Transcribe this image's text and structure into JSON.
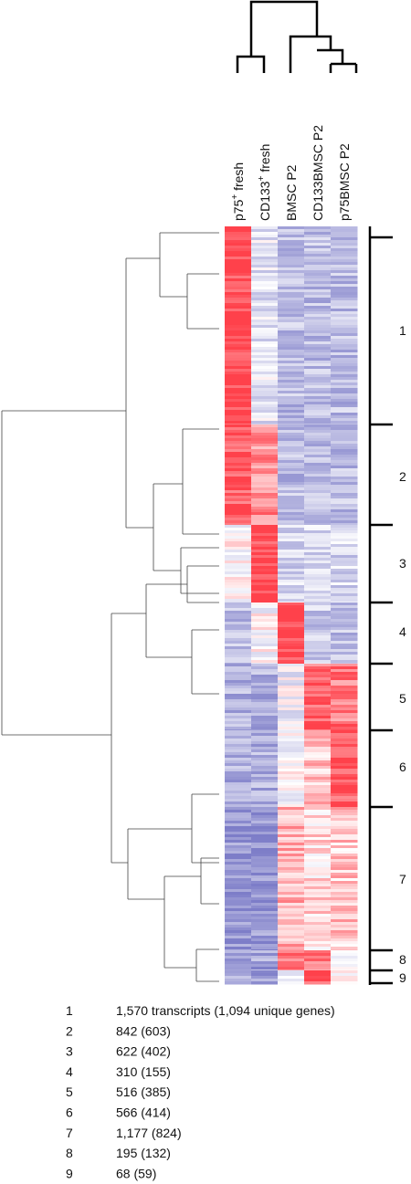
{
  "columns": [
    {
      "main": "p75",
      "sup": "+",
      "rest": " fresh"
    },
    {
      "main": "CD133",
      "sup": "+",
      "rest": " fresh"
    },
    {
      "main": "BMSC P2"
    },
    {
      "main": "CD133BMSC P2"
    },
    {
      "main": "p75BMSC P2"
    }
  ],
  "clusters": [
    "1",
    "2",
    "3",
    "4",
    "5",
    "6",
    "7",
    "8",
    "9"
  ],
  "legend": [
    {
      "number": "1",
      "text": "1,570 transcripts (1,094 unique genes)"
    },
    {
      "number": "2",
      "text": "842 (603)"
    },
    {
      "number": "3",
      "text": "622 (402)"
    },
    {
      "number": "4",
      "text": "310 (155)"
    },
    {
      "number": "5",
      "text": "516 (385)"
    },
    {
      "number": "6",
      "text": "566 (414)"
    },
    {
      "number": "7",
      "text": "1,177 (824)"
    },
    {
      "number": "8",
      "text": "195 (132)"
    },
    {
      "number": "9",
      "text": "68 (59)"
    }
  ]
}
